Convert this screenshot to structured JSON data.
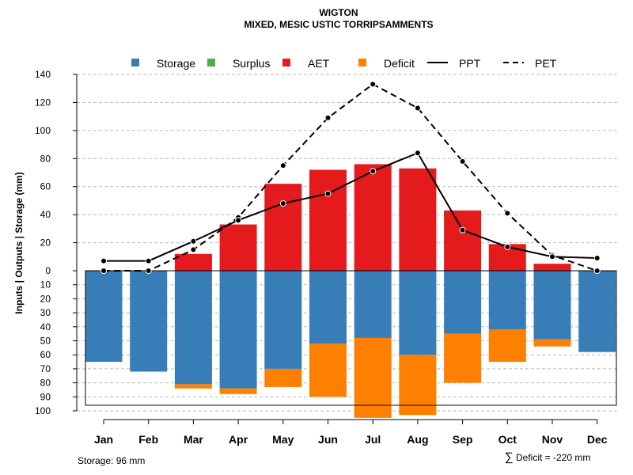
{
  "header": {
    "title": "WIGTON",
    "subtitle": "MIXED, MESIC USTIC TORRIPSAMMENTS"
  },
  "colors": {
    "storage": "#377eb8",
    "surplus": "#4daf4a",
    "aet": "#e41a1c",
    "deficit": "#ff7f00",
    "line": "#000000",
    "grid": "#bbbbbb"
  },
  "legend": {
    "storage": "Storage",
    "surplus": "Surplus",
    "aet": "AET",
    "deficit": "Deficit",
    "ppt": "PPT",
    "pet": "PET"
  },
  "footer": {
    "storage_text": "Storage: 96 mm",
    "deficit_symbol": "∑",
    "deficit_text": "Deficit = -220 mm"
  },
  "chart_data": {
    "type": "bar",
    "title": "WIGTON",
    "subtitle": "MIXED, MESIC USTIC TORRIPSAMMENTS",
    "ylabel": "Inputs | Outputs | Storage    (mm)",
    "categories": [
      "Jan",
      "Feb",
      "Mar",
      "Apr",
      "May",
      "Jun",
      "Jul",
      "Aug",
      "Sep",
      "Oct",
      "Nov",
      "Dec"
    ],
    "upper_axis": {
      "ylim": [
        0,
        140
      ],
      "ticks": [
        0,
        20,
        40,
        60,
        80,
        100,
        120,
        140
      ]
    },
    "lower_axis": {
      "ylim": [
        0,
        100
      ],
      "ticks": [
        10,
        20,
        30,
        40,
        50,
        60,
        70,
        80,
        90,
        100
      ]
    },
    "storage_capacity": 96,
    "series": [
      {
        "name": "AET",
        "values": [
          0,
          0,
          12,
          33,
          62,
          72,
          76,
          73,
          43,
          19,
          5,
          0
        ]
      },
      {
        "name": "Surplus",
        "values": [
          0,
          0,
          0,
          0,
          0,
          0,
          0,
          0,
          0,
          0,
          0,
          0
        ]
      },
      {
        "name": "Storage",
        "values": [
          65,
          72,
          81,
          84,
          70,
          52,
          48,
          60,
          45,
          42,
          49,
          58
        ]
      },
      {
        "name": "Deficit",
        "values": [
          0,
          0,
          3,
          4,
          13,
          38,
          57,
          43,
          35,
          23,
          5,
          0
        ]
      },
      {
        "name": "PPT",
        "values": [
          7,
          7,
          21,
          36,
          48,
          55,
          71,
          84,
          29,
          17,
          10,
          9
        ]
      },
      {
        "name": "PET",
        "values": [
          0,
          0,
          15,
          38,
          75,
          109,
          133,
          116,
          78,
          41,
          11,
          0
        ]
      }
    ]
  }
}
